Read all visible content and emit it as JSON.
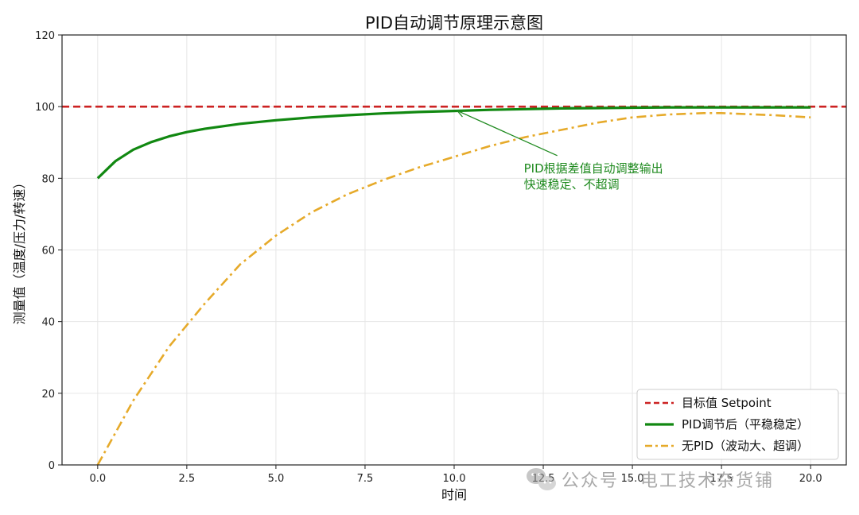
{
  "chart_data": {
    "type": "line",
    "title": "PID自动调节原理示意图",
    "xlabel": "时间",
    "ylabel": "测量值（温度/压力/转速）",
    "xlim": [
      -1,
      21
    ],
    "ylim": [
      0,
      120
    ],
    "xticks": [
      0.0,
      2.5,
      5.0,
      7.5,
      10.0,
      12.5,
      15.0,
      17.5,
      20.0
    ],
    "xtick_labels": [
      "0.0",
      "2.5",
      "5.0",
      "7.5",
      "10.0",
      "12.5",
      "15.0",
      "17.5",
      "20.0"
    ],
    "yticks": [
      0,
      20,
      40,
      60,
      80,
      100,
      120
    ],
    "ytick_labels": [
      "0",
      "20",
      "40",
      "60",
      "80",
      "100",
      "120"
    ],
    "grid": true,
    "legend_position": "lower-right",
    "series": [
      {
        "name": "目标值 Setpoint",
        "color": "#cc2222",
        "style": "dashed",
        "x": [
          -1,
          21
        ],
        "y": [
          100,
          100
        ]
      },
      {
        "name": "PID调节后（平稳稳定）",
        "color": "#118811",
        "style": "solid",
        "x": [
          0,
          0.5,
          1,
          1.5,
          2,
          2.5,
          3,
          4,
          5,
          6,
          7,
          8,
          9,
          10,
          11,
          12,
          13,
          14,
          15,
          16,
          17,
          18,
          19,
          20
        ],
        "y": [
          80,
          84.8,
          88.0,
          90.1,
          91.7,
          92.9,
          93.8,
          95.2,
          96.2,
          97.0,
          97.6,
          98.1,
          98.5,
          98.8,
          99.1,
          99.3,
          99.5,
          99.6,
          99.7,
          99.8,
          99.8,
          99.8,
          99.8,
          99.8
        ]
      },
      {
        "name": "无PID（波动大、超调）",
        "color": "#e6aa2a",
        "style": "dashdot",
        "x": [
          0,
          1,
          2,
          3,
          4,
          5,
          6,
          7,
          8,
          9,
          10,
          11,
          12,
          13,
          14,
          15,
          16,
          17,
          17.5,
          18,
          19,
          20
        ],
        "y": [
          0,
          18,
          33,
          45,
          56,
          64,
          70.5,
          75.5,
          79.5,
          83,
          86,
          89,
          91.5,
          93.5,
          95.5,
          97,
          97.8,
          98.2,
          98.2,
          98.0,
          97.6,
          97.0
        ]
      }
    ],
    "annotation": {
      "lines": [
        "PID根据差值自动调整输出",
        "快速稳定、不超调"
      ],
      "color": "#1f8a1f",
      "arrow_to": [
        10.0,
        99.3
      ],
      "text_at": [
        12.0,
        85.0
      ]
    }
  },
  "watermark": {
    "text": "公众号 · 电工技术杂货铺",
    "icon": "wechat-icon"
  }
}
